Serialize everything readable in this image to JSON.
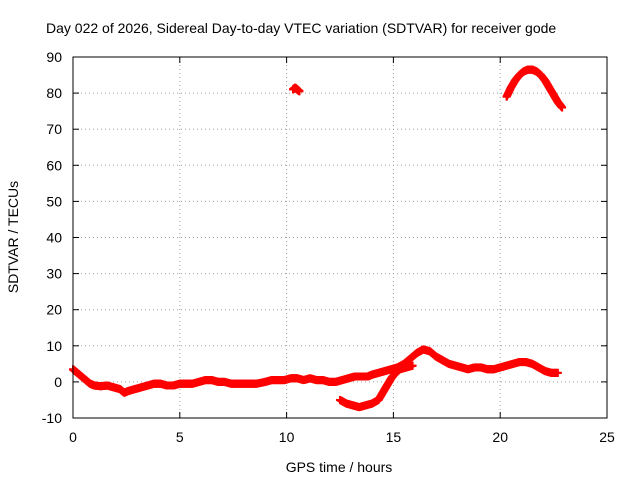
{
  "chart_data": {
    "type": "scatter",
    "title": "Day 022 of 2026, Sidereal Day-to-day VTEC variation (SDTVAR) for receiver gode",
    "xlabel": "GPS time / hours",
    "ylabel": "SDTVAR / TECUs",
    "xlim": [
      0,
      25
    ],
    "ylim": [
      -10,
      90
    ],
    "xticks": [
      0,
      5,
      10,
      15,
      20,
      25
    ],
    "yticks": [
      -10,
      0,
      10,
      20,
      30,
      40,
      50,
      60,
      70,
      80,
      90
    ],
    "grid": true,
    "marker": "plus",
    "series": [
      {
        "name": "SDTVAR",
        "color": "#ff0000",
        "segments": [
          [
            [
              0.0,
              3.5
            ],
            [
              0.2,
              2.5
            ],
            [
              0.4,
              1.5
            ],
            [
              0.6,
              0.5
            ],
            [
              0.8,
              -0.5
            ],
            [
              1.0,
              -1.0
            ],
            [
              1.3,
              -1.2
            ],
            [
              1.6,
              -1.0
            ],
            [
              1.9,
              -1.5
            ],
            [
              2.2,
              -2.0
            ],
            [
              2.4,
              -3.0
            ],
            [
              2.6,
              -2.5
            ],
            [
              2.9,
              -2.0
            ],
            [
              3.2,
              -1.5
            ],
            [
              3.5,
              -1.0
            ],
            [
              3.8,
              -0.5
            ],
            [
              4.1,
              -0.5
            ],
            [
              4.4,
              -1.0
            ],
            [
              4.7,
              -1.0
            ],
            [
              5.0,
              -0.5
            ],
            [
              5.3,
              -0.5
            ],
            [
              5.6,
              -0.5
            ],
            [
              5.9,
              0.0
            ],
            [
              6.2,
              0.5
            ],
            [
              6.5,
              0.5
            ],
            [
              6.8,
              0.0
            ],
            [
              7.1,
              0.0
            ],
            [
              7.4,
              -0.5
            ],
            [
              7.7,
              -0.5
            ],
            [
              8.0,
              -0.5
            ],
            [
              8.3,
              -0.5
            ],
            [
              8.6,
              -0.5
            ],
            [
              9.0,
              0.0
            ],
            [
              9.3,
              0.5
            ],
            [
              9.6,
              0.5
            ],
            [
              9.9,
              0.5
            ],
            [
              10.2,
              1.0
            ],
            [
              10.5,
              1.0
            ],
            [
              10.8,
              0.5
            ],
            [
              11.1,
              1.0
            ],
            [
              11.4,
              0.5
            ],
            [
              11.7,
              0.5
            ],
            [
              12.0,
              0.0
            ],
            [
              12.3,
              0.0
            ],
            [
              12.6,
              0.5
            ],
            [
              12.9,
              1.0
            ],
            [
              13.2,
              1.5
            ],
            [
              13.5,
              1.5
            ],
            [
              13.8,
              1.5
            ],
            [
              14.0,
              2.0
            ],
            [
              14.3,
              2.5
            ],
            [
              14.6,
              3.0
            ],
            [
              14.9,
              3.5
            ],
            [
              15.2,
              4.0
            ],
            [
              15.5,
              5.0
            ],
            [
              15.8,
              6.5
            ],
            [
              16.1,
              8.0
            ],
            [
              16.4,
              9.0
            ],
            [
              16.7,
              8.5
            ],
            [
              17.0,
              7.0
            ],
            [
              17.3,
              6.0
            ],
            [
              17.6,
              5.0
            ],
            [
              17.9,
              4.5
            ],
            [
              18.2,
              4.0
            ],
            [
              18.5,
              3.5
            ],
            [
              18.8,
              4.0
            ],
            [
              19.1,
              4.0
            ],
            [
              19.4,
              3.5
            ],
            [
              19.7,
              3.5
            ],
            [
              20.0,
              4.0
            ],
            [
              20.3,
              4.5
            ],
            [
              20.6,
              5.0
            ],
            [
              20.9,
              5.5
            ],
            [
              21.2,
              5.5
            ],
            [
              21.5,
              5.0
            ],
            [
              21.8,
              4.0
            ],
            [
              22.1,
              3.0
            ],
            [
              22.4,
              2.5
            ],
            [
              22.7,
              2.5
            ]
          ],
          [
            [
              12.5,
              -5.0
            ],
            [
              12.8,
              -6.0
            ],
            [
              13.1,
              -6.5
            ],
            [
              13.4,
              -7.0
            ],
            [
              13.7,
              -6.5
            ],
            [
              14.0,
              -6.0
            ],
            [
              14.3,
              -5.0
            ],
            [
              14.5,
              -3.0
            ],
            [
              14.7,
              -1.0
            ],
            [
              14.9,
              1.0
            ],
            [
              15.1,
              2.5
            ],
            [
              15.3,
              3.5
            ],
            [
              15.6,
              4.0
            ],
            [
              15.9,
              4.5
            ]
          ],
          [
            [
              10.3,
              81.0
            ],
            [
              10.4,
              81.5
            ],
            [
              10.5,
              81.0
            ],
            [
              10.6,
              80.5
            ]
          ],
          [
            [
              20.3,
              79.0
            ],
            [
              20.5,
              81.5
            ],
            [
              20.7,
              83.5
            ],
            [
              20.9,
              85.0
            ],
            [
              21.1,
              86.0
            ],
            [
              21.3,
              86.5
            ],
            [
              21.5,
              86.5
            ],
            [
              21.7,
              86.0
            ],
            [
              21.9,
              85.0
            ],
            [
              22.1,
              83.5
            ],
            [
              22.3,
              81.5
            ],
            [
              22.5,
              79.5
            ],
            [
              22.7,
              77.5
            ],
            [
              22.9,
              76.0
            ]
          ]
        ]
      }
    ]
  }
}
